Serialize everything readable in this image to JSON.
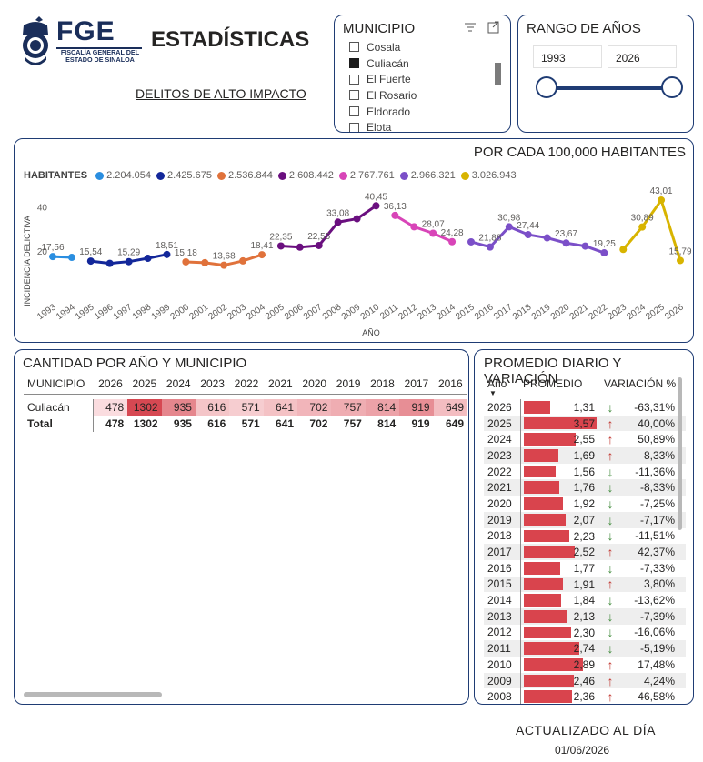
{
  "header": {
    "logo_text": "FGE",
    "logo_subtitle": "FISCALÍA GENERAL DEL ESTADO DE SINALOA",
    "title": "ESTADÍSTICAS",
    "subtitle_link": "DELITOS DE ALTO IMPACTO"
  },
  "municipio": {
    "title": "MUNICIPIO",
    "items": [
      {
        "label": "Cosala",
        "checked": false
      },
      {
        "label": "Culiacán",
        "checked": true
      },
      {
        "label": "El Fuerte",
        "checked": false
      },
      {
        "label": "El Rosario",
        "checked": false
      },
      {
        "label": "Eldorado",
        "checked": false
      },
      {
        "label": "Elota",
        "checked": false
      }
    ]
  },
  "rango": {
    "title": "RANGO DE AÑOS",
    "from": "1993",
    "to": "2026"
  },
  "line_panel": {
    "title": "POR CADA 100,000 HABITANTES",
    "legend_title": "HABITANTES"
  },
  "chart_data": {
    "type": "line",
    "title": "POR CADA 100,000 HABITANTES",
    "xlabel": "AÑO",
    "ylabel": "INCIDENCIA DELICTIVA",
    "yticks": [
      "20",
      "40"
    ],
    "ylim": [
      0,
      50
    ],
    "x": [
      "1993",
      "1994",
      "1995",
      "1996",
      "1997",
      "1998",
      "1999",
      "2000",
      "2001",
      "2002",
      "2003",
      "2004",
      "2005",
      "2006",
      "2007",
      "2008",
      "2009",
      "2010",
      "2011",
      "2012",
      "2013",
      "2014",
      "2015",
      "2016",
      "2017",
      "2018",
      "2019",
      "2020",
      "2021",
      "2022",
      "2023",
      "2024",
      "2025",
      "2026"
    ],
    "series": [
      {
        "name": "2.204.054",
        "color": "#2a8ee0",
        "points": [
          [
            "1993",
            17.56
          ],
          [
            "1994",
            17.2
          ]
        ],
        "labels": {
          "1993": "17,56"
        }
      },
      {
        "name": "2.425.675",
        "color": "#13279a",
        "points": [
          [
            "1995",
            15.54
          ],
          [
            "1996",
            14.5
          ],
          [
            "1997",
            15.29
          ],
          [
            "1998",
            16.8
          ],
          [
            "1999",
            18.51
          ]
        ],
        "labels": {
          "1995": "15,54",
          "1997": "15,29",
          "1999": "18,51"
        }
      },
      {
        "name": "2.536.844",
        "color": "#e0723b",
        "points": [
          [
            "2000",
            15.18
          ],
          [
            "2001",
            14.8
          ],
          [
            "2002",
            13.68
          ],
          [
            "2003",
            15.6
          ],
          [
            "2004",
            18.41
          ]
        ],
        "labels": {
          "2000": "15,18",
          "2002": "13,68",
          "2004": "18,41"
        }
      },
      {
        "name": "2.608.442",
        "color": "#6a0f7f",
        "points": [
          [
            "2005",
            22.35
          ],
          [
            "2006",
            21.8
          ],
          [
            "2007",
            22.55
          ],
          [
            "2008",
            33.08
          ],
          [
            "2009",
            34.6
          ],
          [
            "2010",
            40.45
          ]
        ],
        "labels": {
          "2005": "22,35",
          "2007": "22,55",
          "2008": "33,08",
          "2010": "40,45"
        }
      },
      {
        "name": "2.767.761",
        "color": "#d845b8",
        "points": [
          [
            "2011",
            36.13
          ],
          [
            "2012",
            31.0
          ],
          [
            "2013",
            28.07
          ],
          [
            "2014",
            24.28
          ]
        ],
        "labels": {
          "2011": "36,13",
          "2013": "28,07",
          "2014": "24,28"
        }
      },
      {
        "name": "2.966.321",
        "color": "#7b4fc8",
        "points": [
          [
            "2015",
            24.2
          ],
          [
            "2016",
            21.88
          ],
          [
            "2017",
            30.98
          ],
          [
            "2018",
            27.44
          ],
          [
            "2019",
            26.0
          ],
          [
            "2020",
            23.67
          ],
          [
            "2021",
            22.3
          ],
          [
            "2022",
            19.25
          ]
        ],
        "labels": {
          "2016": "21,88",
          "2017": "30,98",
          "2018": "27,44",
          "2020": "23,67",
          "2022": "19,25"
        }
      },
      {
        "name": "3.026.943",
        "color": "#d8b400",
        "points": [
          [
            "2023",
            20.8
          ],
          [
            "2024",
            30.89
          ],
          [
            "2025",
            43.01
          ],
          [
            "2026",
            15.79
          ]
        ],
        "labels": {
          "2024": "30,89",
          "2025": "43,01",
          "2026": "15,79"
        }
      }
    ]
  },
  "table": {
    "title": "CANTIDAD POR AÑO Y MUNICIPIO",
    "col_header": "MUNICIPIO",
    "years": [
      "2026",
      "2025",
      "2024",
      "2023",
      "2022",
      "2021",
      "2020",
      "2019",
      "2018",
      "2017",
      "2016"
    ],
    "rows": [
      {
        "name": "Culiacán",
        "values": [
          "478",
          "1302",
          "935",
          "616",
          "571",
          "641",
          "702",
          "757",
          "814",
          "919",
          "649"
        ],
        "shade": [
          0.05,
          1.0,
          0.6,
          0.2,
          0.15,
          0.22,
          0.3,
          0.35,
          0.42,
          0.55,
          0.25
        ]
      }
    ],
    "total": {
      "name": "Total",
      "values": [
        "478",
        "1302",
        "935",
        "616",
        "571",
        "641",
        "702",
        "757",
        "814",
        "919",
        "649"
      ]
    }
  },
  "promedio": {
    "title": "PROMEDIO DIARIO Y VARIACIÓN",
    "col_year": "Año",
    "col_prom": "PROMEDIO",
    "col_var": "VARIACIÓN %",
    "bar_color": "#d9444d",
    "up_color": "#c0342d",
    "down_color": "#3f8a3a",
    "rows": [
      {
        "year": "2026",
        "avg": "1,31",
        "avg_num": 1.31,
        "dir": "down",
        "var": "-63,31%"
      },
      {
        "year": "2025",
        "avg": "3,57",
        "avg_num": 3.57,
        "dir": "up",
        "var": "40,00%"
      },
      {
        "year": "2024",
        "avg": "2,55",
        "avg_num": 2.55,
        "dir": "up",
        "var": "50,89%"
      },
      {
        "year": "2023",
        "avg": "1,69",
        "avg_num": 1.69,
        "dir": "up",
        "var": "8,33%"
      },
      {
        "year": "2022",
        "avg": "1,56",
        "avg_num": 1.56,
        "dir": "down",
        "var": "-11,36%"
      },
      {
        "year": "2021",
        "avg": "1,76",
        "avg_num": 1.76,
        "dir": "down",
        "var": "-8,33%"
      },
      {
        "year": "2020",
        "avg": "1,92",
        "avg_num": 1.92,
        "dir": "down",
        "var": "-7,25%"
      },
      {
        "year": "2019",
        "avg": "2,07",
        "avg_num": 2.07,
        "dir": "down",
        "var": "-7,17%"
      },
      {
        "year": "2018",
        "avg": "2,23",
        "avg_num": 2.23,
        "dir": "down",
        "var": "-11,51%"
      },
      {
        "year": "2017",
        "avg": "2,52",
        "avg_num": 2.52,
        "dir": "up",
        "var": "42,37%"
      },
      {
        "year": "2016",
        "avg": "1,77",
        "avg_num": 1.77,
        "dir": "down",
        "var": "-7,33%"
      },
      {
        "year": "2015",
        "avg": "1,91",
        "avg_num": 1.91,
        "dir": "up",
        "var": "3,80%"
      },
      {
        "year": "2014",
        "avg": "1,84",
        "avg_num": 1.84,
        "dir": "down",
        "var": "-13,62%"
      },
      {
        "year": "2013",
        "avg": "2,13",
        "avg_num": 2.13,
        "dir": "down",
        "var": "-7,39%"
      },
      {
        "year": "2012",
        "avg": "2,30",
        "avg_num": 2.3,
        "dir": "down",
        "var": "-16,06%"
      },
      {
        "year": "2011",
        "avg": "2,74",
        "avg_num": 2.74,
        "dir": "down",
        "var": "-5,19%"
      },
      {
        "year": "2010",
        "avg": "2,89",
        "avg_num": 2.89,
        "dir": "up",
        "var": "17,48%"
      },
      {
        "year": "2009",
        "avg": "2,46",
        "avg_num": 2.46,
        "dir": "up",
        "var": "4,24%"
      },
      {
        "year": "2008",
        "avg": "2,36",
        "avg_num": 2.36,
        "dir": "up",
        "var": "46,58%"
      }
    ]
  },
  "footer": {
    "updated_label": "ACTUALIZADO AL DÍA",
    "updated_date": "01/06/2026"
  }
}
